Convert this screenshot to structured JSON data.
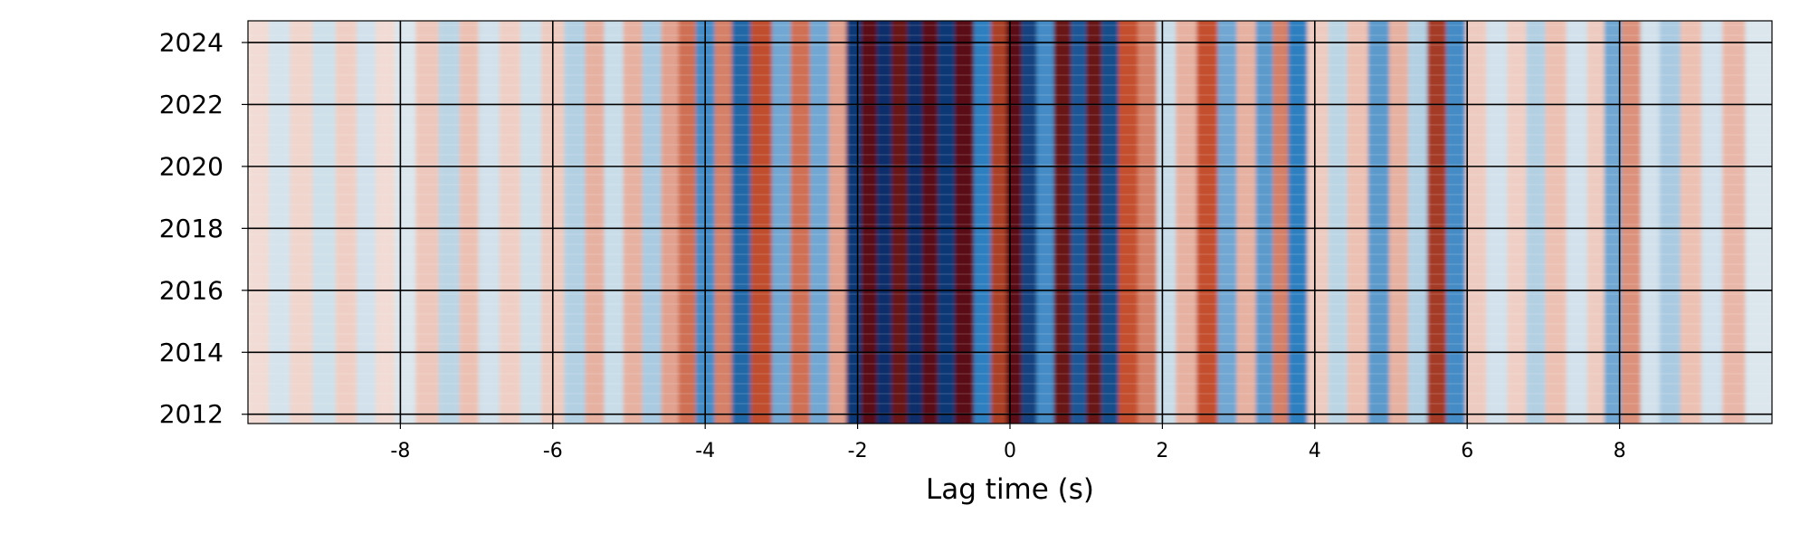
{
  "chart_data": {
    "type": "heatmap",
    "xlabel": "Lag time (s)",
    "ylabel": "",
    "title": "",
    "xlim": [
      -10,
      10
    ],
    "ylim": [
      2011.7,
      2024.7
    ],
    "xticks": [
      -8,
      -6,
      -4,
      -2,
      0,
      2,
      4,
      6,
      8
    ],
    "xtick_labels": [
      "-8",
      "-6",
      "-4",
      "-2",
      "0",
      "2",
      "4",
      "6",
      "8"
    ],
    "yticks": [
      2012,
      2014,
      2016,
      2018,
      2020,
      2022,
      2024
    ],
    "ytick_labels": [
      "2012",
      "2014",
      "2016",
      "2018",
      "2020",
      "2022",
      "2024"
    ],
    "grid": true,
    "colormap": {
      "negative": "#0b2f6b",
      "mid_negative": "#2f7fc0",
      "light_negative": "#c9dde9",
      "zero": "#f5f3f2",
      "light_positive": "#ecc1b4",
      "mid_positive": "#c4502f",
      "positive": "#5a0a14"
    },
    "bands": [
      {
        "lag": -9.85,
        "value": 0.12
      },
      {
        "lag": -9.6,
        "value": -0.18
      },
      {
        "lag": -9.3,
        "value": 0.15
      },
      {
        "lag": -9.0,
        "value": -0.22
      },
      {
        "lag": -8.7,
        "value": 0.18
      },
      {
        "lag": -8.45,
        "value": -0.2
      },
      {
        "lag": -8.2,
        "value": 0.12
      },
      {
        "lag": -7.95,
        "value": -0.15
      },
      {
        "lag": -7.65,
        "value": 0.22
      },
      {
        "lag": -7.35,
        "value": -0.28
      },
      {
        "lag": -7.1,
        "value": 0.25
      },
      {
        "lag": -6.85,
        "value": -0.2
      },
      {
        "lag": -6.55,
        "value": 0.18
      },
      {
        "lag": -6.3,
        "value": -0.22
      },
      {
        "lag": -6.0,
        "value": 0.2
      },
      {
        "lag": -5.7,
        "value": -0.3
      },
      {
        "lag": -5.45,
        "value": 0.3
      },
      {
        "lag": -5.2,
        "value": -0.25
      },
      {
        "lag": -4.95,
        "value": 0.3
      },
      {
        "lag": -4.7,
        "value": -0.32
      },
      {
        "lag": -4.45,
        "value": 0.35
      },
      {
        "lag": -4.25,
        "value": 0.5
      },
      {
        "lag": -4.0,
        "value": -0.55
      },
      {
        "lag": -3.75,
        "value": 0.45
      },
      {
        "lag": -3.55,
        "value": -0.72
      },
      {
        "lag": -3.25,
        "value": 0.62
      },
      {
        "lag": -3.0,
        "value": -0.45
      },
      {
        "lag": -2.75,
        "value": 0.5
      },
      {
        "lag": -2.5,
        "value": -0.45
      },
      {
        "lag": -2.25,
        "value": 0.35
      },
      {
        "lag": -2.05,
        "value": -0.95
      },
      {
        "lag": -1.85,
        "value": 1.0
      },
      {
        "lag": -1.65,
        "value": -1.0
      },
      {
        "lag": -1.45,
        "value": 0.95
      },
      {
        "lag": -1.25,
        "value": -1.0
      },
      {
        "lag": -1.05,
        "value": 1.0
      },
      {
        "lag": -0.85,
        "value": -0.95
      },
      {
        "lag": -0.6,
        "value": 1.0
      },
      {
        "lag": -0.35,
        "value": -0.6
      },
      {
        "lag": -0.15,
        "value": 0.7
      },
      {
        "lag": 0.05,
        "value": 1.0
      },
      {
        "lag": 0.25,
        "value": -0.9
      },
      {
        "lag": 0.45,
        "value": -0.55
      },
      {
        "lag": 0.7,
        "value": 0.95
      },
      {
        "lag": 0.9,
        "value": -0.8
      },
      {
        "lag": 1.1,
        "value": 0.95
      },
      {
        "lag": 1.3,
        "value": -0.85
      },
      {
        "lag": 1.55,
        "value": 0.6
      },
      {
        "lag": 1.8,
        "value": 0.45
      },
      {
        "lag": 2.05,
        "value": -0.25
      },
      {
        "lag": 2.3,
        "value": 0.3
      },
      {
        "lag": 2.6,
        "value": 0.6
      },
      {
        "lag": 2.85,
        "value": -0.45
      },
      {
        "lag": 3.1,
        "value": 0.3
      },
      {
        "lag": 3.35,
        "value": -0.5
      },
      {
        "lag": 3.55,
        "value": 0.45
      },
      {
        "lag": 3.75,
        "value": -0.6
      },
      {
        "lag": 4.05,
        "value": 0.2
      },
      {
        "lag": 4.3,
        "value": -0.28
      },
      {
        "lag": 4.55,
        "value": 0.25
      },
      {
        "lag": 4.85,
        "value": -0.5
      },
      {
        "lag": 5.1,
        "value": 0.3
      },
      {
        "lag": 5.35,
        "value": -0.3
      },
      {
        "lag": 5.6,
        "value": 0.72
      },
      {
        "lag": 5.85,
        "value": -0.55
      },
      {
        "lag": 6.1,
        "value": 0.2
      },
      {
        "lag": 6.4,
        "value": -0.2
      },
      {
        "lag": 6.65,
        "value": 0.18
      },
      {
        "lag": 6.9,
        "value": -0.3
      },
      {
        "lag": 7.15,
        "value": 0.25
      },
      {
        "lag": 7.45,
        "value": -0.2
      },
      {
        "lag": 7.7,
        "value": 0.2
      },
      {
        "lag": 7.9,
        "value": -0.45
      },
      {
        "lag": 8.15,
        "value": 0.4
      },
      {
        "lag": 8.4,
        "value": -0.2
      },
      {
        "lag": 8.65,
        "value": -0.32
      },
      {
        "lag": 8.95,
        "value": 0.25
      },
      {
        "lag": 9.2,
        "value": -0.2
      },
      {
        "lag": 9.5,
        "value": 0.28
      },
      {
        "lag": 9.8,
        "value": -0.15
      }
    ]
  }
}
